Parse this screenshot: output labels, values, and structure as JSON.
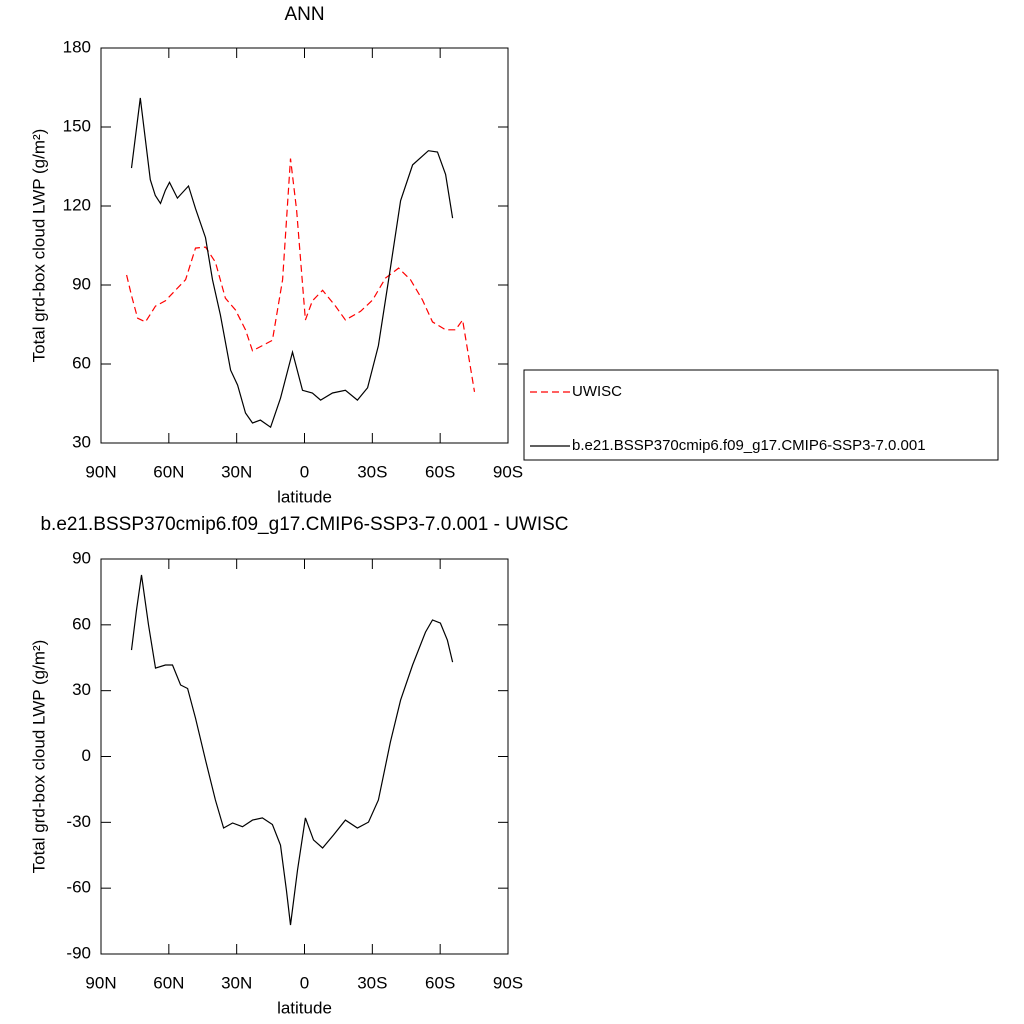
{
  "chart_data": [
    {
      "type": "line",
      "title": "ANN",
      "x_label": "latitude",
      "y_label": "Total grd-box cloud LWP (g/m²)",
      "xlim": [
        90,
        -90
      ],
      "xticks": [
        {
          "value": 90,
          "label": "90N"
        },
        {
          "value": 60,
          "label": "60N"
        },
        {
          "value": 30,
          "label": "30N"
        },
        0,
        {
          "value": -30,
          "label": "30S"
        },
        {
          "value": -60,
          "label": "60S"
        },
        {
          "value": -90,
          "label": "90S"
        }
      ],
      "ylim": [
        30,
        180
      ],
      "yticks": [
        30,
        60,
        90,
        120,
        150,
        180
      ],
      "legend": "right",
      "series": [
        {
          "name": "UWISC",
          "color": "#ff0000",
          "linestyle": "dashed",
          "x": [
            78.7,
            76.5,
            73.8,
            70.3,
            65.9,
            61.5,
            57.1,
            52.6,
            48.2,
            43.8,
            39.4,
            35.0,
            30.5,
            26.1,
            23.0,
            18.6,
            14.2,
            9.7,
            6.2,
            3.5,
            -0.4,
            -3.5,
            -8.0,
            -13.7,
            -18.1,
            -24.8,
            -30.1,
            -35.8,
            -41.6,
            -46.9,
            -52.2,
            -56.6,
            -62.4,
            -66.8,
            -69.9,
            -72.5,
            -75.2
          ],
          "values": [
            93.8,
            86,
            77.4,
            76,
            82,
            84,
            88,
            92,
            104,
            104.4,
            98.7,
            85,
            80.5,
            73,
            65,
            67,
            69,
            92,
            138,
            118.5,
            76.7,
            84,
            88,
            82,
            76.7,
            80,
            84.3,
            92.6,
            96.4,
            92,
            84.3,
            76,
            73,
            73,
            76.7,
            63.4,
            49.4
          ]
        },
        {
          "name": "b.e21.BSSP370cmip6.f09_g17.CMIP6-SSP3-7.0.001",
          "color": "#000000",
          "linestyle": "solid",
          "x": [
            76.5,
            72.6,
            68.2,
            66.0,
            63.7,
            61.5,
            59.7,
            56.2,
            51.3,
            48.2,
            43.8,
            40.7,
            37.2,
            32.7,
            29.6,
            26.1,
            23.0,
            19.5,
            15.0,
            10.6,
            5.3,
            0.9,
            -3.5,
            -7.1,
            -12.4,
            -18.1,
            -23.4,
            -27.9,
            -32.7,
            -38.0,
            -42.5,
            -47.8,
            -54.8,
            -58.8,
            -62.4,
            -65.5
          ],
          "values": [
            134.4,
            161,
            130,
            124,
            121,
            126,
            129,
            123,
            127.6,
            119,
            108,
            92,
            78.6,
            57.7,
            52,
            41.4,
            37.6,
            38.7,
            36,
            47,
            64.5,
            50,
            49,
            46.3,
            49,
            50,
            46.3,
            51,
            67,
            96.4,
            122,
            135.6,
            141,
            140.5,
            132,
            115.4
          ]
        }
      ]
    },
    {
      "type": "line",
      "title": "b.e21.BSSP370cmip6.f09_g17.CMIP6-SSP3-7.0.001 - UWISC",
      "x_label": "latitude",
      "y_label": "Total grd-box cloud LWP (g/m²)",
      "xlim": [
        90,
        -90
      ],
      "xticks": [
        {
          "value": 90,
          "label": "90N"
        },
        {
          "value": 60,
          "label": "60N"
        },
        {
          "value": 30,
          "label": "30N"
        },
        0,
        {
          "value": -30,
          "label": "30S"
        },
        {
          "value": -60,
          "label": "60S"
        },
        {
          "value": -90,
          "label": "90S"
        }
      ],
      "ylim": [
        -90,
        90
      ],
      "yticks": [
        -90,
        -60,
        -30,
        0,
        30,
        60,
        90
      ],
      "series": [
        {
          "color": "#000000",
          "linestyle": "solid",
          "x": [
            76.5,
            74.3,
            72.1,
            69.0,
            65.9,
            61.5,
            58.4,
            54.8,
            51.7,
            48.2,
            43.8,
            39.4,
            35.8,
            31.8,
            27.4,
            23.0,
            18.6,
            14.2,
            10.6,
            8.0,
            6.2,
            3.1,
            -0.4,
            -4.0,
            -8.0,
            -12.8,
            -18.1,
            -23.4,
            -28.3,
            -32.7,
            -38.0,
            -42.5,
            -47.8,
            -53.5,
            -56.6,
            -60.1,
            -63.2,
            -65.5
          ],
          "values": [
            48.5,
            66.8,
            82.7,
            60,
            40.3,
            41.7,
            41.7,
            32.6,
            31,
            17.5,
            -1.6,
            -19.8,
            -32.6,
            -30.3,
            -32,
            -29,
            -28,
            -31,
            -40.4,
            -60.9,
            -76.8,
            -51.8,
            -28,
            -38,
            -41.7,
            -35.8,
            -29,
            -32.6,
            -29.9,
            -19.8,
            6.6,
            25.7,
            41.7,
            56.7,
            62.2,
            60.8,
            53,
            43
          ]
        }
      ]
    }
  ]
}
